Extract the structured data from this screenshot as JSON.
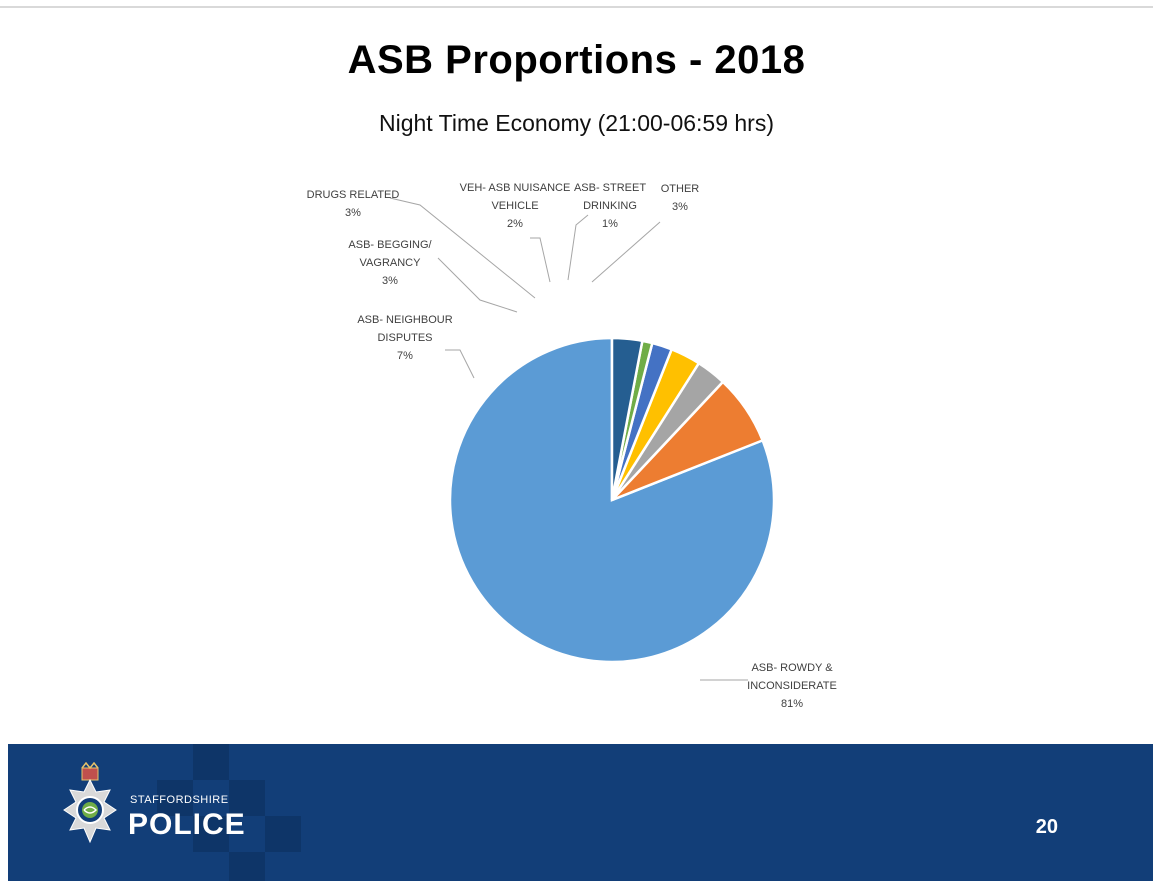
{
  "title": "ASB Proportions - 2018",
  "subtitle": "Night Time Economy (21:00-06:59 hrs)",
  "chart_data": {
    "type": "pie",
    "title": "ASB Proportions - 2018",
    "subtitle": "Night Time Economy (21:00-06:59 hrs)",
    "slices": [
      {
        "label": "ASB- ROWDY & INCONSIDERATE",
        "value": 81,
        "display": "81%",
        "color": "#5b9bd5",
        "label_lines": [
          "ASB- ROWDY &",
          "INCONSIDERATE",
          "81%"
        ]
      },
      {
        "label": "ASB- NEIGHBOUR DISPUTES",
        "value": 7,
        "display": "7%",
        "color": "#ed7d31",
        "label_lines": [
          "ASB- NEIGHBOUR",
          "DISPUTES",
          "7%"
        ]
      },
      {
        "label": "ASB- BEGGING/ VAGRANCY",
        "value": 3,
        "display": "3%",
        "color": "#a5a5a5",
        "label_lines": [
          "ASB- BEGGING/",
          "VAGRANCY",
          "3%"
        ]
      },
      {
        "label": "DRUGS RELATED",
        "value": 3,
        "display": "3%",
        "color": "#ffc000",
        "label_lines": [
          "DRUGS RELATED",
          "3%"
        ]
      },
      {
        "label": "VEH- ASB NUISANCE VEHICLE",
        "value": 2,
        "display": "2%",
        "color": "#4472c4",
        "label_lines": [
          "VEH- ASB NUISANCE",
          "VEHICLE",
          "2%"
        ]
      },
      {
        "label": "ASB- STREET DRINKING",
        "value": 1,
        "display": "1%",
        "color": "#70ad47",
        "label_lines": [
          "ASB- STREET",
          "DRINKING",
          "1%"
        ]
      },
      {
        "label": "OTHER",
        "value": 3,
        "display": "3%",
        "color": "#255e91",
        "label_lines": [
          "OTHER",
          "3%"
        ]
      }
    ],
    "start_angle": "12 o'clock",
    "direction": "counter-clockwise",
    "legend": "none"
  },
  "footer": {
    "brand_small": "STAFFORDSHIRE",
    "brand_big": "POLICE",
    "page_number": "20",
    "background_color": "#123e78"
  }
}
